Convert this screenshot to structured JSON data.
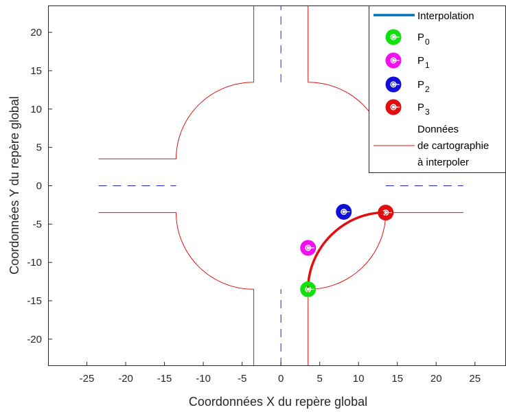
{
  "chart_data": {
    "type": "line",
    "title": "",
    "xlabel": "Coordonnées X du repère global",
    "ylabel": "Coordonnées Y du repère global",
    "xlim": [
      -30,
      29
    ],
    "ylim": [
      -23.5,
      23.5
    ],
    "xticks": [
      -25,
      -20,
      -15,
      -10,
      -5,
      0,
      5,
      10,
      15,
      20,
      25
    ],
    "yticks": [
      -20,
      -15,
      -10,
      -5,
      0,
      5,
      10,
      15,
      20
    ],
    "grid": false,
    "legend_position": "top-right",
    "colors": {
      "interpolation": "#0072bd",
      "curve": "#e01010",
      "map": "#e01010",
      "centerline": "#1f1fe0",
      "p0": "#10e010",
      "p1": "#f010f0",
      "p2": "#1010d8",
      "p3": "#e01010"
    },
    "legend": [
      {
        "key": "interpolation",
        "label": "Interpolation",
        "sub": ""
      },
      {
        "key": "p0",
        "label": "P",
        "sub": "0"
      },
      {
        "key": "p1",
        "label": "P",
        "sub": "1"
      },
      {
        "key": "p2",
        "label": "P",
        "sub": "2"
      },
      {
        "key": "p3",
        "label": "P",
        "sub": "3"
      },
      {
        "key": "map",
        "label": "Données\nde cartographie\nà interpoler",
        "sub": ""
      }
    ],
    "control_points": [
      {
        "name": "P0",
        "x": 3.5,
        "y": -13.5
      },
      {
        "name": "P1",
        "x": 3.5,
        "y": -8.1
      },
      {
        "name": "P2",
        "x": 8.1,
        "y": -3.4
      },
      {
        "name": "P3",
        "x": 13.5,
        "y": -3.5
      }
    ],
    "map_lines": [
      {
        "kind": "corner",
        "sx": 1,
        "sy": 1
      },
      {
        "kind": "corner",
        "sx": -1,
        "sy": 1
      },
      {
        "kind": "corner",
        "sx": 1,
        "sy": -1
      },
      {
        "kind": "corner",
        "sx": -1,
        "sy": -1
      }
    ],
    "center_dashes": [
      {
        "x": [
          0,
          0
        ],
        "y": [
          13.5,
          23.5
        ]
      },
      {
        "x": [
          0,
          0
        ],
        "y": [
          -23.5,
          -13.5
        ]
      },
      {
        "x": [
          -23.5,
          -13.5
        ],
        "y": [
          0,
          0
        ]
      },
      {
        "x": [
          13.5,
          23.5
        ],
        "y": [
          0,
          0
        ]
      }
    ],
    "road_half_width": 3.5,
    "corner_radius": 10,
    "road_extent": 23.5
  }
}
